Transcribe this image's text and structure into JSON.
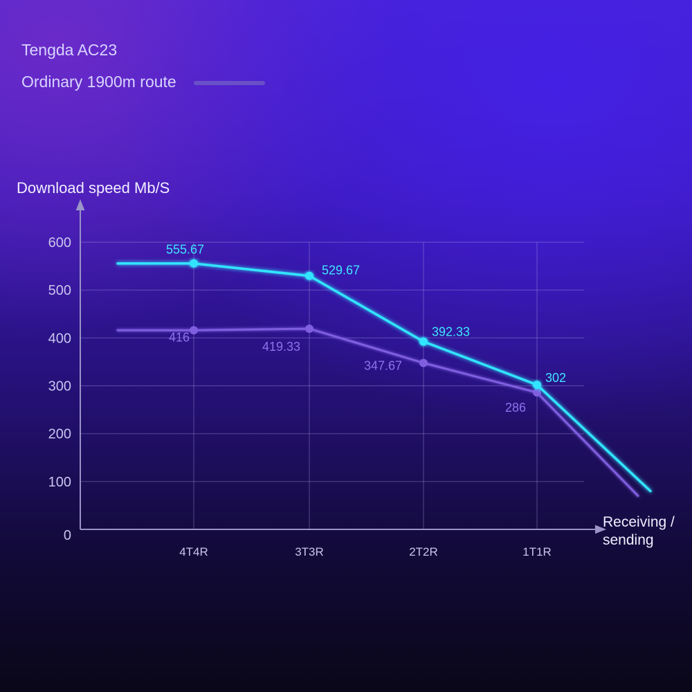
{
  "chart_data": {
    "type": "line",
    "ylabel": "Download speed Mb/S",
    "xlabel_lines": [
      "Receiving /",
      "sending"
    ],
    "ylim": [
      0,
      600
    ],
    "yticks": [
      0,
      100,
      200,
      300,
      400,
      500,
      600
    ],
    "categories": [
      "4T4R",
      "3T3R",
      "2T2R",
      "1T1R"
    ],
    "grid": true,
    "legend_position": "top-left",
    "series": [
      {
        "name": "Tengda AC23",
        "color": "#33e4ff",
        "values": [
          555.67,
          529.67,
          392.33,
          302
        ],
        "labels": [
          "555.67",
          "529.67",
          "392.33",
          "302"
        ]
      },
      {
        "name": "Ordinary 1900m route",
        "color": "#7f5ee0",
        "values": [
          416,
          419.33,
          347.67,
          286
        ],
        "labels": [
          "416",
          "419.33",
          "347.67",
          "286"
        ]
      }
    ]
  }
}
